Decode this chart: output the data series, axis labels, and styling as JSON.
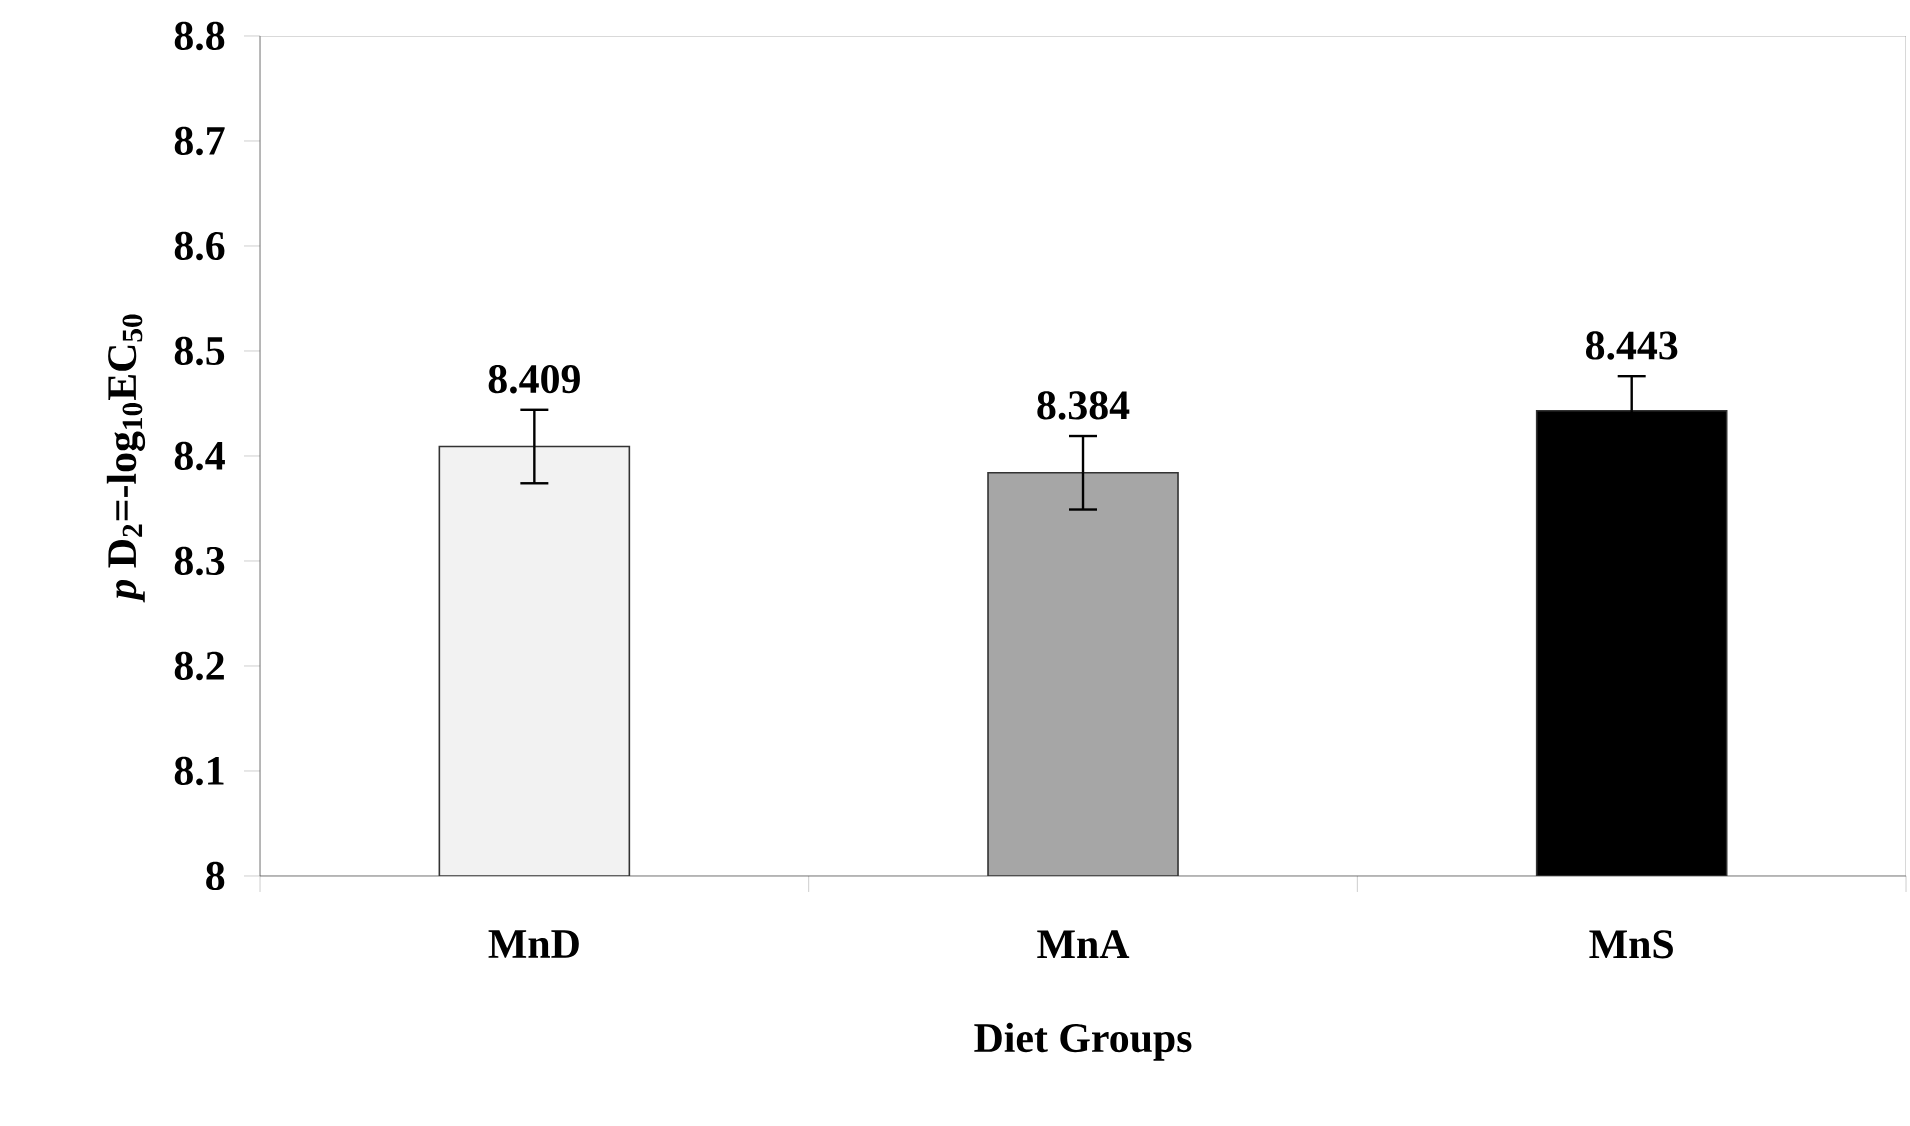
{
  "chart_data": {
    "type": "bar",
    "xlabel": "Diet Groups",
    "ylabel": "*p* D$_{2}$=-log$_{10}$EC$_{50}$",
    "categories": [
      "MnD",
      "MnA",
      "MnS"
    ],
    "values": [
      8.409,
      8.384,
      8.443
    ],
    "errors": [
      0.035,
      0.035,
      0.033
    ],
    "colors": [
      "#f2f2f2",
      "#a6a6a6",
      "#000000"
    ],
    "data_labels": true,
    "ylim": [
      8,
      8.8
    ],
    "yticks": [
      8,
      8.1,
      8.2,
      8.3,
      8.4,
      8.5,
      8.6,
      8.7,
      8.8
    ]
  }
}
